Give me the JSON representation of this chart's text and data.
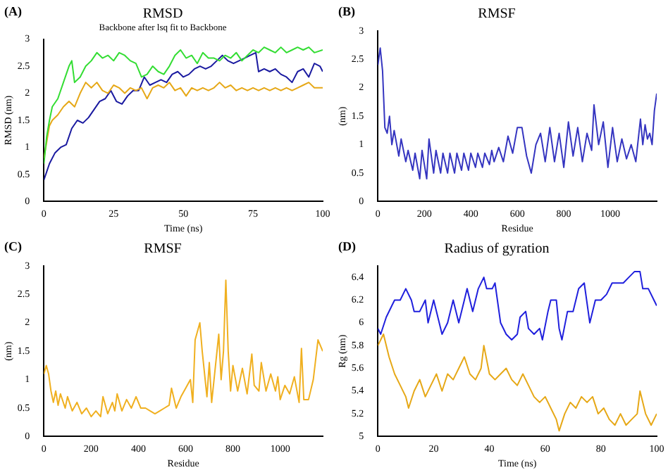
{
  "chart_data": [
    {
      "type": "line",
      "title": "RMSD",
      "subtitle": "Backbone after lsq fit to Backbone",
      "xlabel": "Time (ns)",
      "ylabel": "RMSD (nm)",
      "annotations": [
        "(A)"
      ],
      "xlim": [
        0,
        100
      ],
      "xticks": [
        0,
        25,
        50,
        75,
        100
      ],
      "ylim": [
        0,
        3
      ],
      "yticks": [
        0,
        0.5,
        1,
        1.5,
        2,
        2.5,
        3
      ],
      "series": [
        {
          "color": "#33dd33",
          "x": [
            0,
            1,
            2,
            3,
            5,
            7,
            9,
            10,
            11,
            13,
            15,
            17,
            19,
            21,
            23,
            25,
            27,
            29,
            31,
            33,
            35,
            37,
            39,
            41,
            43,
            45,
            47,
            49,
            51,
            53,
            55,
            57,
            59,
            61,
            63,
            65,
            67,
            69,
            71,
            73,
            75,
            77,
            79,
            81,
            83,
            85,
            87,
            89,
            91,
            93,
            95,
            97,
            100
          ],
          "values": [
            0.7,
            1.2,
            1.5,
            1.75,
            1.9,
            2.2,
            2.5,
            2.6,
            2.2,
            2.3,
            2.5,
            2.6,
            2.75,
            2.65,
            2.7,
            2.6,
            2.75,
            2.7,
            2.6,
            2.55,
            2.3,
            2.35,
            2.5,
            2.4,
            2.35,
            2.5,
            2.7,
            2.8,
            2.65,
            2.7,
            2.55,
            2.75,
            2.65,
            2.65,
            2.6,
            2.7,
            2.65,
            2.75,
            2.6,
            2.7,
            2.8,
            2.75,
            2.85,
            2.8,
            2.75,
            2.85,
            2.75,
            2.8,
            2.85,
            2.8,
            2.85,
            2.75,
            2.8
          ]
        },
        {
          "color": "#e6a817",
          "x": [
            0,
            1,
            2,
            3,
            5,
            7,
            9,
            11,
            13,
            15,
            17,
            19,
            21,
            23,
            25,
            27,
            29,
            31,
            33,
            35,
            37,
            39,
            41,
            43,
            45,
            47,
            49,
            51,
            53,
            55,
            57,
            59,
            61,
            63,
            65,
            67,
            69,
            71,
            73,
            75,
            77,
            79,
            81,
            83,
            85,
            87,
            89,
            91,
            93,
            95,
            97,
            100
          ],
          "values": [
            0.8,
            1.1,
            1.4,
            1.5,
            1.6,
            1.75,
            1.85,
            1.75,
            2.0,
            2.2,
            2.1,
            2.2,
            2.05,
            2.0,
            2.15,
            2.1,
            2.0,
            2.1,
            2.05,
            2.1,
            1.9,
            2.1,
            2.15,
            2.1,
            2.2,
            2.05,
            2.1,
            1.95,
            2.1,
            2.05,
            2.1,
            2.05,
            2.1,
            2.2,
            2.1,
            2.15,
            2.05,
            2.1,
            2.05,
            2.1,
            2.05,
            2.1,
            2.05,
            2.1,
            2.05,
            2.1,
            2.05,
            2.1,
            2.15,
            2.2,
            2.1,
            2.1
          ]
        },
        {
          "color": "#1a1aa0",
          "x": [
            0,
            1,
            2,
            4,
            6,
            8,
            10,
            12,
            14,
            16,
            18,
            20,
            22,
            24,
            26,
            28,
            30,
            32,
            34,
            36,
            38,
            40,
            42,
            44,
            46,
            48,
            50,
            52,
            54,
            56,
            58,
            60,
            62,
            64,
            66,
            68,
            70,
            72,
            74,
            76,
            77,
            79,
            81,
            83,
            85,
            87,
            89,
            91,
            93,
            95,
            97,
            99,
            100
          ],
          "values": [
            0.4,
            0.55,
            0.7,
            0.9,
            1.0,
            1.05,
            1.35,
            1.5,
            1.45,
            1.55,
            1.7,
            1.85,
            1.9,
            2.05,
            1.85,
            1.8,
            1.95,
            2.05,
            2.05,
            2.3,
            2.15,
            2.2,
            2.25,
            2.2,
            2.35,
            2.4,
            2.3,
            2.35,
            2.45,
            2.5,
            2.45,
            2.5,
            2.6,
            2.7,
            2.6,
            2.55,
            2.6,
            2.65,
            2.7,
            2.75,
            2.4,
            2.45,
            2.4,
            2.45,
            2.35,
            2.3,
            2.2,
            2.4,
            2.45,
            2.3,
            2.55,
            2.5,
            2.4
          ]
        }
      ]
    },
    {
      "type": "line",
      "title": "RMSF",
      "xlabel": "Residue",
      "ylabel": "(nm)",
      "annotations": [
        "(B)"
      ],
      "xlim": [
        0,
        1200
      ],
      "xticks": [
        0,
        200,
        400,
        600,
        800,
        1000
      ],
      "ylim": [
        0,
        3
      ],
      "yticks": [
        0,
        0.5,
        1,
        1.5,
        2,
        2.5,
        3
      ],
      "series": [
        {
          "color": "#3535c0",
          "x": [
            0,
            10,
            20,
            30,
            40,
            50,
            60,
            70,
            90,
            100,
            120,
            130,
            150,
            160,
            180,
            190,
            210,
            220,
            240,
            250,
            270,
            280,
            300,
            310,
            330,
            340,
            360,
            370,
            390,
            400,
            420,
            430,
            450,
            460,
            480,
            490,
            500,
            520,
            540,
            560,
            580,
            600,
            620,
            640,
            660,
            680,
            700,
            720,
            740,
            760,
            780,
            800,
            820,
            840,
            860,
            880,
            900,
            920,
            930,
            950,
            970,
            990,
            1010,
            1030,
            1050,
            1070,
            1090,
            1110,
            1130,
            1140,
            1150,
            1160,
            1170,
            1180,
            1190,
            1200
          ],
          "values": [
            2.4,
            2.7,
            2.3,
            1.3,
            1.2,
            1.5,
            1.0,
            1.25,
            0.8,
            1.1,
            0.7,
            0.9,
            0.55,
            0.85,
            0.4,
            0.9,
            0.4,
            1.1,
            0.5,
            0.9,
            0.5,
            0.85,
            0.5,
            0.85,
            0.5,
            0.85,
            0.55,
            0.85,
            0.55,
            0.85,
            0.6,
            0.85,
            0.6,
            0.85,
            0.65,
            0.9,
            0.7,
            0.95,
            0.7,
            1.15,
            0.85,
            1.3,
            1.3,
            0.8,
            0.5,
            1.0,
            1.2,
            0.7,
            1.3,
            0.7,
            1.2,
            0.6,
            1.4,
            0.8,
            1.3,
            0.7,
            1.2,
            0.9,
            1.7,
            1.0,
            1.4,
            0.6,
            1.3,
            0.7,
            1.1,
            0.75,
            1.0,
            0.7,
            1.45,
            1.0,
            1.35,
            1.1,
            1.2,
            1.0,
            1.6,
            1.9
          ]
        }
      ]
    },
    {
      "type": "line",
      "title": "RMSF",
      "xlabel": "Residue",
      "ylabel": "(nm)",
      "annotations": [
        "(C)"
      ],
      "xlim": [
        0,
        1180
      ],
      "xticks": [
        0,
        200,
        400,
        600,
        800,
        1000
      ],
      "ylim": [
        0,
        3
      ],
      "yticks": [
        0,
        0.5,
        1,
        1.5,
        2,
        2.5,
        3
      ],
      "series": [
        {
          "color": "#f0b020",
          "x": [
            0,
            10,
            20,
            30,
            40,
            50,
            60,
            70,
            90,
            100,
            120,
            140,
            160,
            180,
            200,
            220,
            240,
            250,
            270,
            290,
            300,
            310,
            330,
            350,
            370,
            390,
            410,
            430,
            450,
            470,
            490,
            510,
            530,
            540,
            560,
            580,
            600,
            620,
            630,
            640,
            660,
            670,
            690,
            700,
            710,
            720,
            740,
            750,
            760,
            770,
            780,
            790,
            800,
            820,
            840,
            860,
            880,
            890,
            910,
            920,
            940,
            960,
            980,
            990,
            1000,
            1020,
            1040,
            1060,
            1080,
            1090,
            1100,
            1120,
            1140,
            1160,
            1180
          ],
          "values": [
            1.1,
            1.25,
            1.1,
            0.8,
            0.6,
            0.8,
            0.55,
            0.75,
            0.5,
            0.7,
            0.45,
            0.6,
            0.4,
            0.5,
            0.35,
            0.45,
            0.35,
            0.7,
            0.4,
            0.6,
            0.45,
            0.75,
            0.45,
            0.65,
            0.5,
            0.7,
            0.5,
            0.5,
            0.45,
            0.4,
            0.45,
            0.5,
            0.55,
            0.85,
            0.5,
            0.7,
            0.85,
            1.0,
            0.6,
            1.7,
            2.0,
            1.5,
            0.7,
            1.3,
            0.6,
            1.0,
            1.8,
            1.0,
            1.5,
            2.75,
            1.5,
            0.8,
            1.25,
            0.8,
            1.2,
            0.75,
            1.45,
            0.9,
            0.8,
            1.3,
            0.8,
            1.1,
            0.8,
            1.05,
            0.65,
            0.9,
            0.75,
            1.05,
            0.6,
            1.55,
            0.65,
            0.65,
            1.0,
            1.7,
            1.5
          ]
        }
      ]
    },
    {
      "type": "line",
      "title": "Radius of gyration",
      "xlabel": "Time (ns)",
      "ylabel": "Rg (nm)",
      "annotations": [
        "(D)"
      ],
      "xlim": [
        0,
        100
      ],
      "xticks": [
        0,
        20,
        40,
        60,
        80,
        100
      ],
      "ylim": [
        5,
        6.5
      ],
      "yticks": [
        5,
        5.2,
        5.4,
        5.6,
        5.8,
        6,
        6.2,
        6.4
      ],
      "series": [
        {
          "color": "#2020dd",
          "x": [
            0,
            1,
            3,
            5,
            6,
            8,
            10,
            12,
            13,
            15,
            17,
            18,
            20,
            22,
            23,
            25,
            27,
            29,
            31,
            32,
            34,
            36,
            38,
            39,
            41,
            42,
            44,
            46,
            48,
            50,
            51,
            53,
            54,
            56,
            58,
            59,
            61,
            62,
            64,
            65,
            66,
            68,
            70,
            72,
            74,
            76,
            78,
            80,
            82,
            84,
            86,
            88,
            90,
            92,
            94,
            95,
            97,
            99,
            100
          ],
          "values": [
            5.95,
            5.9,
            6.05,
            6.15,
            6.2,
            6.2,
            6.3,
            6.2,
            6.1,
            6.1,
            6.2,
            6.0,
            6.2,
            6.0,
            5.9,
            6.0,
            6.2,
            6.0,
            6.2,
            6.3,
            6.1,
            6.3,
            6.4,
            6.3,
            6.3,
            6.35,
            6.0,
            5.9,
            5.85,
            5.9,
            6.05,
            6.1,
            5.95,
            5.9,
            5.95,
            5.85,
            6.1,
            6.2,
            6.2,
            5.95,
            5.85,
            6.1,
            6.1,
            6.3,
            6.35,
            6.0,
            6.2,
            6.2,
            6.25,
            6.35,
            6.35,
            6.35,
            6.4,
            6.45,
            6.45,
            6.3,
            6.3,
            6.2,
            6.15
          ]
        },
        {
          "color": "#e6a817",
          "x": [
            0,
            2,
            4,
            6,
            8,
            10,
            11,
            13,
            15,
            17,
            19,
            21,
            23,
            25,
            27,
            29,
            31,
            33,
            35,
            37,
            38,
            40,
            42,
            44,
            46,
            48,
            50,
            52,
            54,
            56,
            58,
            60,
            62,
            64,
            65,
            67,
            69,
            71,
            73,
            75,
            77,
            79,
            81,
            83,
            85,
            87,
            89,
            91,
            93,
            94,
            96,
            98,
            100
          ],
          "values": [
            5.8,
            5.9,
            5.7,
            5.55,
            5.45,
            5.35,
            5.25,
            5.4,
            5.5,
            5.35,
            5.45,
            5.55,
            5.4,
            5.55,
            5.5,
            5.6,
            5.7,
            5.55,
            5.5,
            5.6,
            5.8,
            5.55,
            5.5,
            5.55,
            5.6,
            5.5,
            5.45,
            5.55,
            5.45,
            5.35,
            5.3,
            5.35,
            5.25,
            5.15,
            5.05,
            5.2,
            5.3,
            5.25,
            5.35,
            5.3,
            5.35,
            5.2,
            5.25,
            5.15,
            5.1,
            5.2,
            5.1,
            5.15,
            5.2,
            5.4,
            5.2,
            5.1,
            5.2
          ]
        }
      ]
    }
  ]
}
